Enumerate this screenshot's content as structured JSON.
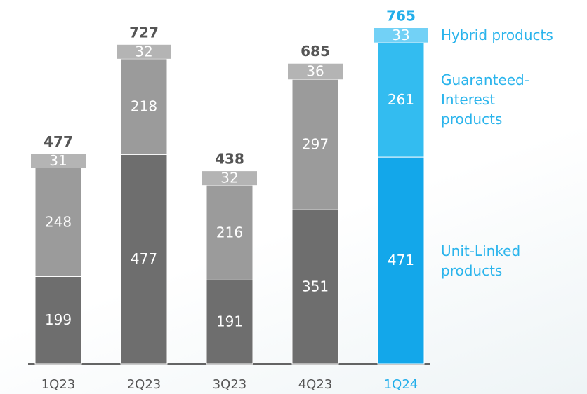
{
  "chart_data": {
    "type": "stacked_bar",
    "categories": [
      "1Q23",
      "2Q23",
      "3Q23",
      "4Q23",
      "1Q24"
    ],
    "totals": [
      477,
      727,
      438,
      685,
      765
    ],
    "series": [
      {
        "name": "Unit-Linked products",
        "values": [
          199,
          477,
          191,
          351,
          471
        ],
        "colors": [
          "#6e6e6e",
          "#6e6e6e",
          "#6e6e6e",
          "#6e6e6e",
          "#13a7ea"
        ]
      },
      {
        "name": "Guaranteed-Interest products",
        "values": [
          248,
          218,
          216,
          297,
          261
        ],
        "colors": [
          "#9b9b9b",
          "#9b9b9b",
          "#9b9b9b",
          "#9b9b9b",
          "#33bcf0"
        ]
      },
      {
        "name": "Hybrid products",
        "values": [
          31,
          32,
          32,
          36,
          33
        ],
        "colors": [
          "#b4b4b4",
          "#b4b4b4",
          "#b4b4b4",
          "#b4b4b4",
          "#72d1f6"
        ]
      }
    ],
    "category_colors": [
      "#555555",
      "#555555",
      "#555555",
      "#555555",
      "#22aeea"
    ],
    "legend_color": "#2ab4ec"
  }
}
